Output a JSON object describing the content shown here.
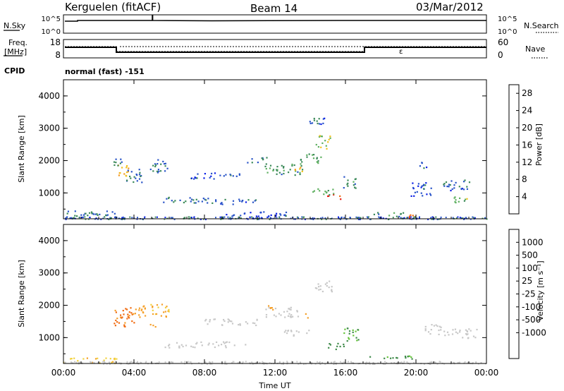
{
  "header": {
    "station": "Kerguelen (fitACF)",
    "beam": "Beam 14",
    "date": "03/Mar/2012"
  },
  "top_panels": {
    "nsky_label": "N.Sky",
    "nsearch_label": "N.Search",
    "nsky_ticks": [
      "10^5",
      "10^0"
    ],
    "nsearch_ticks": [
      "10^5",
      "10^0"
    ],
    "freq_label_line1": "Freq.",
    "freq_label_line2": "[MHz]",
    "freq_ticks": [
      "18",
      "8"
    ],
    "nave_label": "Nave",
    "nave_ticks": [
      "60",
      "0"
    ],
    "cpid_label": "CPID",
    "cpid_value": "normal (fast) -151"
  },
  "colors": {
    "power_scale": [
      "#0a1fe6",
      "#2a55c8",
      "#3c8a5a",
      "#5fb060",
      "#f2c21a",
      "#f39a1e",
      "#f06a10",
      "#e81e12"
    ],
    "velocity_scale": [
      "#1d2fb8",
      "#2a5ec8",
      "#3f8a4a",
      "#66c43a",
      "#c8c8c8",
      "#c8c8c8",
      "#f2d23c",
      "#f5a02a",
      "#f06a10",
      "#e81e12"
    ]
  },
  "chart_data": [
    {
      "type": "heatmap",
      "name": "power",
      "ylabel": "Slant Range [km]",
      "xlabel": "",
      "xlim_hours": [
        0,
        24
      ],
      "ylim": [
        200,
        4500
      ],
      "x_ticks": [
        "00:00",
        "04:00",
        "08:00",
        "12:00",
        "16:00",
        "20:00",
        "00:00"
      ],
      "y_ticks": [
        1000,
        2000,
        3000,
        4000
      ],
      "colorbar": {
        "label": "Power [dB]",
        "ticks": [
          4,
          8,
          12,
          16,
          20,
          24,
          28
        ],
        "range": [
          0,
          30
        ]
      },
      "regions": [
        {
          "t": 3.3,
          "r": 1700,
          "dt": 0.35,
          "dr": 230,
          "v": 18
        },
        {
          "t": 3.0,
          "r": 2000,
          "dt": 0.3,
          "dr": 160,
          "v": 8
        },
        {
          "t": 4.0,
          "r": 1500,
          "dt": 0.45,
          "dr": 250,
          "v": 7
        },
        {
          "t": 5.5,
          "r": 1850,
          "dt": 0.6,
          "dr": 200,
          "v": 6
        },
        {
          "t": 6.6,
          "r": 800,
          "dt": 1.6,
          "dr": 90,
          "v": 7
        },
        {
          "t": 9.6,
          "r": 750,
          "dt": 1.3,
          "dr": 90,
          "v": 6
        },
        {
          "t": 8.6,
          "r": 1550,
          "dt": 1.4,
          "dr": 100,
          "v": 5
        },
        {
          "t": 12.5,
          "r": 1750,
          "dt": 1.1,
          "dr": 180,
          "v": 10
        },
        {
          "t": 13.2,
          "r": 1750,
          "dt": 0.35,
          "dr": 90,
          "v": 21
        },
        {
          "t": 14.0,
          "r": 2100,
          "dt": 0.6,
          "dr": 160,
          "v": 11
        },
        {
          "t": 14.7,
          "r": 2600,
          "dt": 0.4,
          "dr": 220,
          "v": 14
        },
        {
          "t": 15.3,
          "r": 900,
          "dt": 0.45,
          "dr": 70,
          "v": 27
        },
        {
          "t": 14.7,
          "r": 1050,
          "dt": 0.7,
          "dr": 100,
          "v": 12
        },
        {
          "t": 16.2,
          "r": 1350,
          "dt": 0.4,
          "dr": 200,
          "v": 9
        },
        {
          "t": 11.0,
          "r": 2050,
          "dt": 0.6,
          "dr": 90,
          "v": 6
        },
        {
          "t": 19.9,
          "r": 300,
          "dt": 0.55,
          "dr": 55,
          "v": 27
        },
        {
          "t": 20.3,
          "r": 1150,
          "dt": 0.6,
          "dr": 230,
          "v": 6
        },
        {
          "t": 22.3,
          "r": 1250,
          "dt": 0.8,
          "dr": 180,
          "v": 6
        },
        {
          "t": 22.6,
          "r": 800,
          "dt": 0.5,
          "dr": 120,
          "v": 14
        },
        {
          "t": 18.3,
          "r": 350,
          "dt": 1.0,
          "dr": 60,
          "v": 9
        },
        {
          "t": 1.5,
          "r": 350,
          "dt": 1.5,
          "dr": 120,
          "v": 7
        },
        {
          "t": 11.0,
          "r": 350,
          "dt": 1.8,
          "dr": 90,
          "v": 5
        },
        {
          "t": 14.4,
          "r": 3200,
          "dt": 0.5,
          "dr": 150,
          "v": 6
        },
        {
          "t": 20.4,
          "r": 1850,
          "dt": 0.25,
          "dr": 120,
          "v": 6
        }
      ]
    },
    {
      "type": "heatmap",
      "name": "velocity",
      "ylabel": "Slant Range [km]",
      "xlabel": "Time UT",
      "xlim_hours": [
        0,
        24
      ],
      "ylim": [
        200,
        4500
      ],
      "x_ticks": [
        "00:00",
        "04:00",
        "08:00",
        "12:00",
        "16:00",
        "20:00",
        "00:00"
      ],
      "y_ticks": [
        1000,
        2000,
        3000,
        4000
      ],
      "colorbar": {
        "label": "Velocity [m s⁻¹]",
        "ticks": [
          "1000",
          "500",
          "100",
          "25",
          "-25",
          "-100",
          "-500",
          "-1000"
        ]
      },
      "regions": [
        {
          "t": 3.4,
          "r": 1650,
          "dt": 0.6,
          "dr": 300,
          "v": -650
        },
        {
          "t": 4.2,
          "r": 1850,
          "dt": 0.5,
          "dr": 200,
          "v": -300
        },
        {
          "t": 5.5,
          "r": 1850,
          "dt": 0.6,
          "dr": 200,
          "v": -120
        },
        {
          "t": 8.0,
          "r": 800,
          "dt": 2.3,
          "dr": 90,
          "v": 0
        },
        {
          "t": 9.5,
          "r": 1500,
          "dt": 1.6,
          "dr": 100,
          "v": 0
        },
        {
          "t": 12.3,
          "r": 1800,
          "dt": 1.0,
          "dr": 160,
          "v": 0
        },
        {
          "t": 13.3,
          "r": 1150,
          "dt": 0.8,
          "dr": 100,
          "v": 0
        },
        {
          "t": 14.7,
          "r": 2600,
          "dt": 0.5,
          "dr": 200,
          "v": 0
        },
        {
          "t": 15.3,
          "r": 750,
          "dt": 0.6,
          "dr": 90,
          "v": 130
        },
        {
          "t": 16.3,
          "r": 1100,
          "dt": 0.5,
          "dr": 220,
          "v": 110
        },
        {
          "t": 18.5,
          "r": 400,
          "dt": 1.4,
          "dr": 60,
          "v": 130
        },
        {
          "t": 20.9,
          "r": 1250,
          "dt": 0.5,
          "dr": 180,
          "v": 0
        },
        {
          "t": 22.5,
          "r": 1150,
          "dt": 1.0,
          "dr": 150,
          "v": 0
        },
        {
          "t": 11.8,
          "r": 1950,
          "dt": 0.3,
          "dr": 100,
          "v": -150
        },
        {
          "t": 13.8,
          "r": 1700,
          "dt": 0.2,
          "dr": 70,
          "v": -150
        },
        {
          "t": 1.5,
          "r": 300,
          "dt": 1.5,
          "dr": 90,
          "v": -80
        },
        {
          "t": 5.0,
          "r": 1350,
          "dt": 0.2,
          "dr": 80,
          "v": -120
        }
      ]
    }
  ]
}
